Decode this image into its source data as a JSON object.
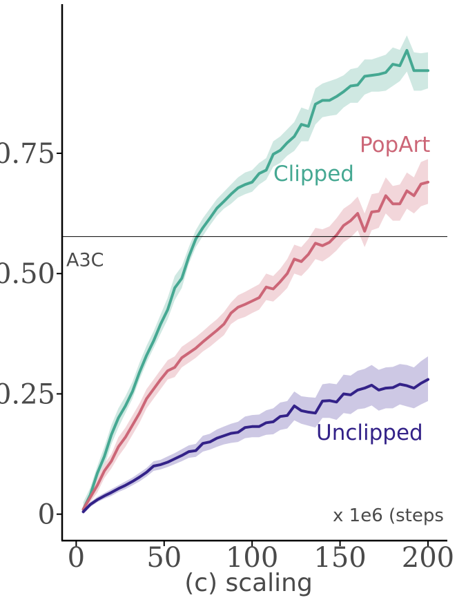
{
  "chart_data": {
    "type": "line",
    "xlabel": "(c) scaling",
    "x_unit_note": "x 1e6 (steps",
    "xlim": [
      -8,
      211
    ],
    "ylim": [
      -0.055,
      1.06
    ],
    "x_ticks": [
      0,
      50,
      100,
      150,
      200
    ],
    "x_tick_labels": [
      "0",
      "50",
      "100",
      "150",
      "200"
    ],
    "y_ticks": [
      0,
      0.25,
      0.5,
      0.75
    ],
    "y_tick_labels": [
      "0",
      "0.25",
      "0.50",
      "0.75"
    ],
    "reference_line": {
      "label": "A3C",
      "value": 0.577
    },
    "series": [
      {
        "name": "Clipped",
        "color": "#45a892",
        "band_color": "#cfe8e2",
        "x": [
          4,
          8,
          12,
          16,
          20,
          24,
          28,
          32,
          36,
          40,
          44,
          48,
          52,
          56,
          60,
          64,
          68,
          72,
          76,
          80,
          84,
          88,
          92,
          96,
          100,
          104,
          108,
          112,
          116,
          120,
          124,
          128,
          132,
          136,
          140,
          144,
          148,
          152,
          156,
          160,
          164,
          168,
          172,
          176,
          180,
          184,
          188,
          192,
          196,
          200
        ],
        "mean": [
          0.01,
          0.04,
          0.085,
          0.12,
          0.165,
          0.2,
          0.225,
          0.255,
          0.295,
          0.33,
          0.36,
          0.395,
          0.425,
          0.47,
          0.49,
          0.535,
          0.572,
          0.595,
          0.615,
          0.636,
          0.65,
          0.665,
          0.678,
          0.685,
          0.69,
          0.708,
          0.715,
          0.748,
          0.756,
          0.772,
          0.785,
          0.81,
          0.806,
          0.852,
          0.86,
          0.86,
          0.868,
          0.878,
          0.89,
          0.892,
          0.91,
          0.912,
          0.914,
          0.918,
          0.935,
          0.932,
          0.964,
          0.922,
          0.922,
          0.922
        ],
        "lower": [
          0.0,
          0.03,
          0.07,
          0.1,
          0.145,
          0.18,
          0.21,
          0.24,
          0.28,
          0.315,
          0.345,
          0.375,
          0.405,
          0.445,
          0.47,
          0.52,
          0.555,
          0.578,
          0.6,
          0.62,
          0.635,
          0.645,
          0.658,
          0.665,
          0.67,
          0.685,
          0.695,
          0.722,
          0.73,
          0.745,
          0.755,
          0.775,
          0.775,
          0.81,
          0.825,
          0.828,
          0.83,
          0.845,
          0.855,
          0.855,
          0.872,
          0.878,
          0.878,
          0.88,
          0.89,
          0.9,
          0.92,
          0.88,
          0.88,
          0.885
        ],
        "upper": [
          0.025,
          0.055,
          0.1,
          0.14,
          0.185,
          0.22,
          0.245,
          0.275,
          0.315,
          0.35,
          0.38,
          0.415,
          0.45,
          0.495,
          0.515,
          0.555,
          0.59,
          0.615,
          0.635,
          0.655,
          0.67,
          0.685,
          0.7,
          0.71,
          0.715,
          0.73,
          0.74,
          0.775,
          0.785,
          0.8,
          0.815,
          0.845,
          0.84,
          0.885,
          0.895,
          0.9,
          0.905,
          0.912,
          0.925,
          0.928,
          0.945,
          0.945,
          0.95,
          0.955,
          0.97,
          0.965,
          0.995,
          0.96,
          0.958,
          0.96
        ]
      },
      {
        "name": "PopArt",
        "color": "#cc6677",
        "band_color": "#f2d6da",
        "x": [
          4,
          8,
          12,
          16,
          20,
          24,
          28,
          32,
          36,
          40,
          44,
          48,
          52,
          56,
          60,
          64,
          68,
          72,
          76,
          80,
          84,
          88,
          92,
          96,
          100,
          104,
          108,
          112,
          116,
          120,
          124,
          128,
          132,
          136,
          140,
          144,
          148,
          152,
          156,
          160,
          164,
          168,
          172,
          176,
          180,
          184,
          188,
          192,
          196,
          200
        ],
        "mean": [
          0.01,
          0.035,
          0.06,
          0.09,
          0.11,
          0.14,
          0.16,
          0.185,
          0.21,
          0.24,
          0.26,
          0.28,
          0.298,
          0.305,
          0.325,
          0.335,
          0.345,
          0.358,
          0.37,
          0.382,
          0.395,
          0.418,
          0.43,
          0.436,
          0.443,
          0.45,
          0.472,
          0.468,
          0.483,
          0.5,
          0.53,
          0.525,
          0.54,
          0.563,
          0.558,
          0.565,
          0.58,
          0.6,
          0.61,
          0.625,
          0.588,
          0.628,
          0.63,
          0.662,
          0.645,
          0.645,
          0.672,
          0.662,
          0.686,
          0.69
        ],
        "lower": [
          0.0,
          0.025,
          0.045,
          0.075,
          0.095,
          0.12,
          0.14,
          0.165,
          0.19,
          0.22,
          0.24,
          0.26,
          0.28,
          0.285,
          0.305,
          0.315,
          0.325,
          0.338,
          0.348,
          0.36,
          0.372,
          0.395,
          0.405,
          0.41,
          0.418,
          0.425,
          0.445,
          0.442,
          0.455,
          0.47,
          0.5,
          0.495,
          0.51,
          0.53,
          0.525,
          0.535,
          0.548,
          0.565,
          0.575,
          0.59,
          0.555,
          0.59,
          0.595,
          0.625,
          0.61,
          0.61,
          0.635,
          0.625,
          0.64,
          0.645
        ],
        "upper": [
          0.02,
          0.045,
          0.075,
          0.105,
          0.125,
          0.16,
          0.18,
          0.205,
          0.23,
          0.26,
          0.28,
          0.3,
          0.32,
          0.328,
          0.348,
          0.358,
          0.368,
          0.38,
          0.393,
          0.405,
          0.42,
          0.44,
          0.455,
          0.462,
          0.47,
          0.478,
          0.5,
          0.495,
          0.51,
          0.53,
          0.56,
          0.555,
          0.572,
          0.595,
          0.592,
          0.598,
          0.615,
          0.635,
          0.645,
          0.66,
          0.625,
          0.665,
          0.668,
          0.7,
          0.682,
          0.685,
          0.71,
          0.7,
          0.732,
          0.738
        ]
      },
      {
        "name": "Unclipped",
        "color": "#332288",
        "band_color": "#cdc8e4",
        "x": [
          4,
          8,
          12,
          16,
          20,
          24,
          28,
          32,
          36,
          40,
          44,
          48,
          52,
          56,
          60,
          64,
          68,
          72,
          76,
          80,
          84,
          88,
          92,
          96,
          100,
          104,
          108,
          112,
          116,
          120,
          124,
          128,
          132,
          136,
          140,
          144,
          148,
          152,
          156,
          160,
          164,
          168,
          172,
          176,
          180,
          184,
          188,
          192,
          196,
          200
        ],
        "mean": [
          0.005,
          0.02,
          0.03,
          0.038,
          0.045,
          0.053,
          0.06,
          0.068,
          0.077,
          0.087,
          0.1,
          0.103,
          0.108,
          0.115,
          0.122,
          0.13,
          0.132,
          0.147,
          0.15,
          0.158,
          0.163,
          0.168,
          0.17,
          0.18,
          0.182,
          0.182,
          0.19,
          0.192,
          0.203,
          0.205,
          0.225,
          0.215,
          0.212,
          0.21,
          0.235,
          0.236,
          0.233,
          0.25,
          0.248,
          0.258,
          0.262,
          0.268,
          0.258,
          0.262,
          0.263,
          0.27,
          0.267,
          0.262,
          0.272,
          0.28
        ],
        "lower": [
          0.0,
          0.015,
          0.025,
          0.032,
          0.038,
          0.046,
          0.052,
          0.06,
          0.068,
          0.078,
          0.09,
          0.093,
          0.098,
          0.104,
          0.11,
          0.117,
          0.119,
          0.13,
          0.134,
          0.14,
          0.145,
          0.148,
          0.15,
          0.158,
          0.16,
          0.16,
          0.165,
          0.166,
          0.175,
          0.178,
          0.195,
          0.188,
          0.184,
          0.18,
          0.2,
          0.2,
          0.196,
          0.21,
          0.208,
          0.218,
          0.22,
          0.226,
          0.215,
          0.22,
          0.22,
          0.228,
          0.224,
          0.22,
          0.228,
          0.235
        ],
        "upper": [
          0.01,
          0.025,
          0.036,
          0.044,
          0.052,
          0.06,
          0.068,
          0.076,
          0.086,
          0.096,
          0.11,
          0.113,
          0.12,
          0.127,
          0.135,
          0.143,
          0.146,
          0.163,
          0.167,
          0.176,
          0.182,
          0.188,
          0.192,
          0.203,
          0.206,
          0.207,
          0.216,
          0.22,
          0.232,
          0.235,
          0.255,
          0.245,
          0.243,
          0.242,
          0.27,
          0.272,
          0.27,
          0.29,
          0.288,
          0.298,
          0.302,
          0.31,
          0.3,
          0.305,
          0.306,
          0.312,
          0.31,
          0.305,
          0.318,
          0.328
        ]
      }
    ]
  }
}
